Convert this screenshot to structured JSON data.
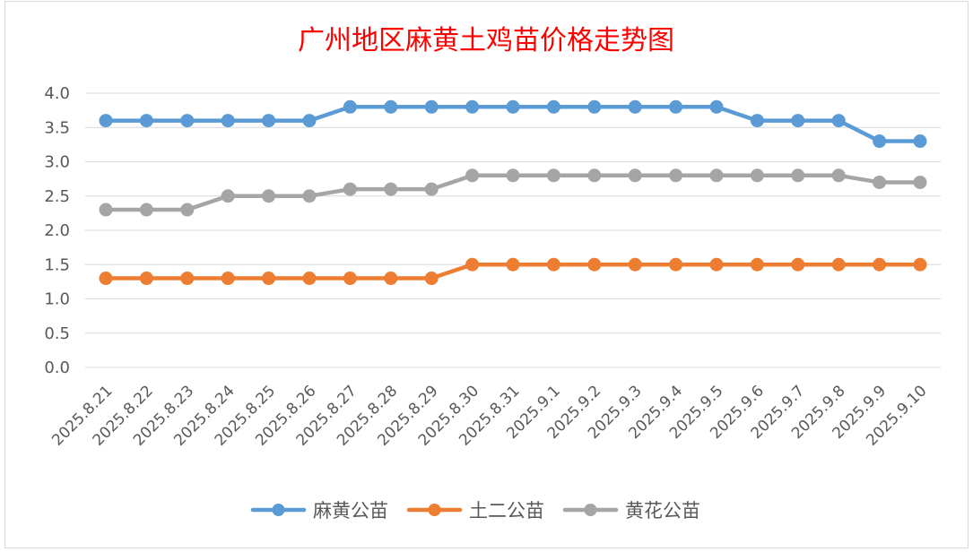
{
  "chart_data": {
    "type": "line",
    "title": "广州地区麻黄土鸡苗价格走势图",
    "xlabel": "",
    "ylabel": "",
    "ylim": [
      0,
      4
    ],
    "y_ticks": [
      "0.0",
      "0.5",
      "1.0",
      "1.5",
      "2.0",
      "2.5",
      "3.0",
      "3.5",
      "4.0"
    ],
    "grid": true,
    "legend_position": "bottom",
    "categories": [
      "2025.8.21",
      "2025.8.22",
      "2025.8.23",
      "2025.8.24",
      "2025.8.25",
      "2025.8.26",
      "2025.8.27",
      "2025.8.28",
      "2025.8.29",
      "2025.8.30",
      "2025.8.31",
      "2025.9.1",
      "2025.9.2",
      "2025.9.3",
      "2025.9.4",
      "2025.9.5",
      "2025.9.6",
      "2025.9.7",
      "2025.9.8",
      "2025.9.9",
      "2025.9.10"
    ],
    "series": [
      {
        "name": "麻黄公苗",
        "color": "#5b9bd5",
        "values": [
          3.6,
          3.6,
          3.6,
          3.6,
          3.6,
          3.6,
          3.8,
          3.8,
          3.8,
          3.8,
          3.8,
          3.8,
          3.8,
          3.8,
          3.8,
          3.8,
          3.6,
          3.6,
          3.6,
          3.3,
          3.3
        ]
      },
      {
        "name": "土二公苗",
        "color": "#ed7d31",
        "values": [
          1.3,
          1.3,
          1.3,
          1.3,
          1.3,
          1.3,
          1.3,
          1.3,
          1.3,
          1.5,
          1.5,
          1.5,
          1.5,
          1.5,
          1.5,
          1.5,
          1.5,
          1.5,
          1.5,
          1.5,
          1.5
        ]
      },
      {
        "name": "黄花公苗",
        "color": "#a5a5a5",
        "values": [
          2.3,
          2.3,
          2.3,
          2.5,
          2.5,
          2.5,
          2.6,
          2.6,
          2.6,
          2.8,
          2.8,
          2.8,
          2.8,
          2.8,
          2.8,
          2.8,
          2.8,
          2.8,
          2.8,
          2.7,
          2.7
        ]
      }
    ]
  }
}
